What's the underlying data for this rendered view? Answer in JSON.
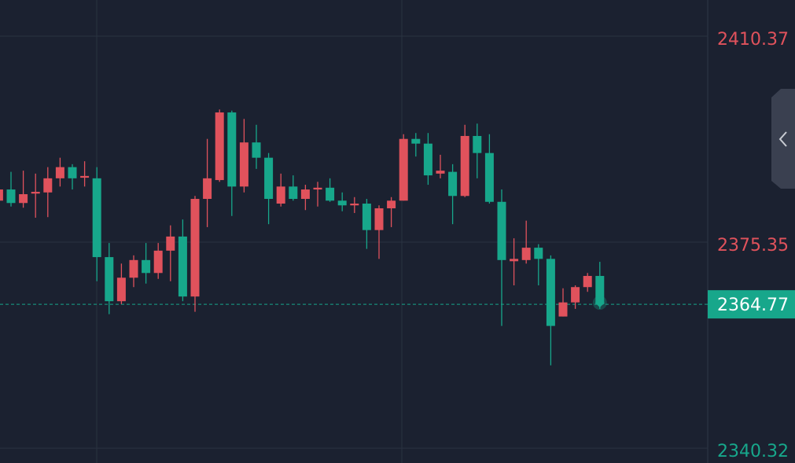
{
  "chart_data": {
    "type": "candlestick",
    "up_color": "#e0525c",
    "down_color": "#17a78b",
    "grid": true,
    "ylim": [
      2337.79,
      2416.52
    ],
    "yticks": [
      2410.37,
      2375.35,
      2340.32
    ],
    "open": [
      2382.4,
      2384.3,
      2382.0,
      2383.6,
      2383.8,
      2386.2,
      2388.1,
      2386.3,
      2386.2,
      2372.8,
      2365.3,
      2369.3,
      2372.3,
      2370.1,
      2373.9,
      2376.3,
      2366.1,
      2382.7,
      2385.9,
      2397.4,
      2384.8,
      2392.3,
      2389.7,
      2381.9,
      2384.8,
      2382.7,
      2384.3,
      2384.6,
      2382.4,
      2381.6,
      2381.9,
      2377.4,
      2381.1,
      2382.4,
      2392.9,
      2392.1,
      2387.0,
      2387.3,
      2383.2,
      2393.4,
      2390.5,
      2382.2,
      2372.1,
      2372.3,
      2374.4,
      2372.5,
      2362.7,
      2365.1,
      2367.7,
      2369.6
    ],
    "high": [
      2385.1,
      2387.3,
      2387.5,
      2387.0,
      2388.1,
      2389.7,
      2388.6,
      2389.1,
      2388.1,
      2375.2,
      2371.7,
      2373.1,
      2375.2,
      2375.2,
      2378.2,
      2379.2,
      2383.2,
      2392.9,
      2397.9,
      2397.7,
      2396.3,
      2395.3,
      2390.5,
      2387.0,
      2386.7,
      2385.1,
      2385.6,
      2386.2,
      2383.8,
      2383.0,
      2382.7,
      2381.6,
      2383.0,
      2393.7,
      2393.9,
      2393.9,
      2390.2,
      2388.6,
      2395.3,
      2395.5,
      2393.7,
      2384.3,
      2376.0,
      2379.0,
      2375.0,
      2373.1,
      2367.5,
      2368.0,
      2370.1,
      2372.0
    ],
    "low": [
      2382.0,
      2381.4,
      2381.2,
      2379.5,
      2379.6,
      2384.8,
      2384.3,
      2384.8,
      2368.7,
      2363.1,
      2364.8,
      2367.7,
      2368.3,
      2369.1,
      2368.7,
      2365.3,
      2363.5,
      2377.9,
      2385.6,
      2379.8,
      2383.8,
      2387.8,
      2378.4,
      2381.4,
      2382.4,
      2380.8,
      2381.4,
      2382.2,
      2380.6,
      2380.3,
      2374.2,
      2372.5,
      2377.9,
      2382.4,
      2389.9,
      2385.1,
      2386.2,
      2378.4,
      2383.0,
      2386.2,
      2381.9,
      2361.1,
      2368.0,
      2371.7,
      2368.0,
      2354.4,
      2362.7,
      2364.0,
      2366.9,
      2364.0
    ],
    "close": [
      2384.3,
      2382.0,
      2383.5,
      2383.9,
      2386.2,
      2388.1,
      2386.2,
      2386.6,
      2372.8,
      2365.3,
      2369.3,
      2372.3,
      2370.1,
      2373.9,
      2376.3,
      2366.1,
      2382.7,
      2386.2,
      2397.4,
      2384.8,
      2392.3,
      2389.7,
      2382.7,
      2384.8,
      2382.7,
      2384.3,
      2384.6,
      2382.4,
      2381.6,
      2381.9,
      2377.4,
      2381.1,
      2382.4,
      2392.9,
      2392.1,
      2386.7,
      2387.5,
      2383.2,
      2393.4,
      2390.5,
      2382.2,
      2372.3,
      2372.5,
      2374.4,
      2372.5,
      2361.1,
      2365.1,
      2367.7,
      2369.6,
      2364.77
    ]
  }
}
